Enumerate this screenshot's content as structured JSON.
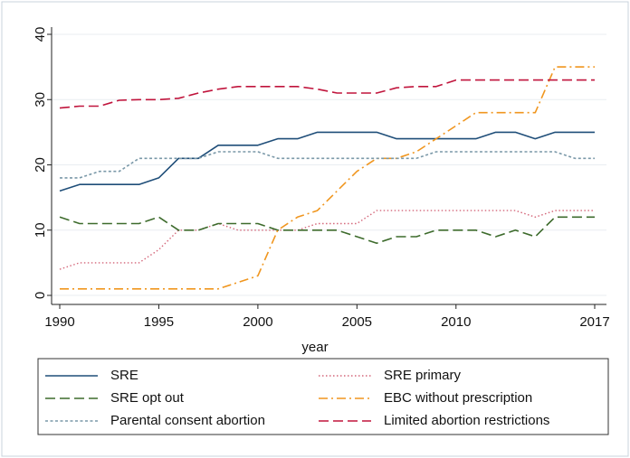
{
  "chart_data": {
    "type": "line",
    "title": "",
    "xlabel": "year",
    "ylabel": "",
    "xlim": [
      1990,
      2017
    ],
    "ylim": [
      0,
      40
    ],
    "xticks": [
      1990,
      1995,
      2000,
      2005,
      2010,
      2017
    ],
    "yticks": [
      0,
      10,
      20,
      30,
      40
    ],
    "grid": "horizontal",
    "legend_placement": "bottom",
    "x": [
      1990,
      1991,
      1992,
      1993,
      1994,
      1995,
      1996,
      1997,
      1998,
      1999,
      2000,
      2001,
      2002,
      2003,
      2004,
      2005,
      2006,
      2007,
      2008,
      2009,
      2010,
      2011,
      2012,
      2013,
      2014,
      2015,
      2016,
      2017
    ],
    "series": [
      {
        "name": "SRE",
        "color": "#1f4e79",
        "dash": "solid",
        "values": [
          16,
          17,
          17,
          17,
          17,
          18,
          21,
          21,
          23,
          23,
          23,
          24,
          24,
          25,
          25,
          25,
          25,
          24,
          24,
          24,
          24,
          24,
          25,
          25,
          24,
          25,
          25,
          25
        ]
      },
      {
        "name": "SRE primary",
        "color": "#d4677a",
        "dash": "dotted",
        "values": [
          4,
          5,
          5,
          5,
          5,
          7,
          10,
          10,
          11,
          10,
          10,
          10,
          10,
          11,
          11,
          11,
          13,
          13,
          13,
          13,
          13,
          13,
          13,
          13,
          12,
          13,
          13,
          13
        ]
      },
      {
        "name": "SRE opt out",
        "color": "#3d6b2c",
        "dash": "longdash",
        "values": [
          12,
          11,
          11,
          11,
          11,
          12,
          10,
          10,
          11,
          11,
          11,
          10,
          10,
          10,
          10,
          9,
          8,
          9,
          9,
          10,
          10,
          10,
          9,
          10,
          9,
          12,
          12,
          12
        ]
      },
      {
        "name": "EBC without prescription",
        "color": "#f0961f",
        "dash": "dashdot",
        "values": [
          1,
          1,
          1,
          1,
          1,
          1,
          1,
          1,
          1,
          2,
          3,
          10,
          12,
          13,
          16,
          19,
          21,
          21,
          22,
          24,
          26,
          28,
          28,
          28,
          28,
          35,
          35,
          35
        ]
      },
      {
        "name": "Parental consent abortion",
        "color": "#7a98a8",
        "dash": "shortdash",
        "values": [
          18,
          18,
          19,
          19,
          21,
          21,
          21,
          21,
          22,
          22,
          22,
          21,
          21,
          21,
          21,
          21,
          21,
          21,
          21,
          22,
          22,
          22,
          22,
          22,
          22,
          22,
          21,
          21
        ]
      },
      {
        "name": "Limited abortion restrictions",
        "color": "#c0143c",
        "dash": "longdash",
        "values": [
          28.7,
          29,
          29,
          29.9,
          30,
          30,
          30.2,
          31,
          31.6,
          32,
          32,
          32,
          32,
          31.6,
          31,
          31,
          31,
          31.8,
          32,
          32,
          33,
          33,
          33,
          33,
          33,
          33,
          33,
          33
        ]
      }
    ]
  }
}
